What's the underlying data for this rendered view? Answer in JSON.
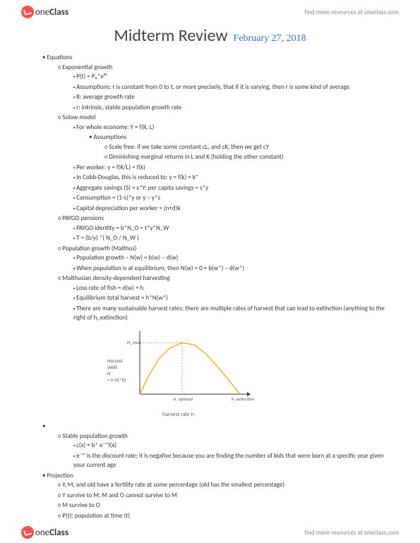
{
  "header": {
    "brand_one": "one",
    "brand_class": "Class",
    "link": "find more resources at oneclass.com"
  },
  "title": "Midterm Review",
  "date": "February 27, 2018",
  "sections": {
    "equations": "Equations",
    "exp_growth": "Exponential growth",
    "exp_items": [
      "P(t) = P₀*eᴿᵗ",
      "Assumptions: r is constant from 0 to t, or more precisely, that if it is varying, then r is some kind of average",
      "R: average growth rate",
      "r: intrinsic, stable population growth rate"
    ],
    "solow": "Solow model",
    "solow_items": [
      "For whole economy: Y = f(K, L)"
    ],
    "solow_assumptions_label": "Assumptions",
    "solow_assumptions": [
      "Scale free: if we take some constant cL, and cK, then we get cY",
      "Diminishing marginal returns in L and K (holding the other constant)"
    ],
    "solow_items2": [
      "Per worker: y = f(K/L) = f(k)",
      "In Cobb-Douglas, this is reduced to: y = f(k) = kᵅ",
      "Aggregate savings (S) = s*Y; per capita savings = s*y",
      "Consumption = (1-s)*y or y − y*s",
      "Capital depreciation per worker = (n+d)k"
    ],
    "paygo": "PAYGO pensions",
    "paygo_items": [
      "PAYGO identity = b*N_O = t*y*N_W",
      "T = (b/y) *( N_O / N_W )"
    ],
    "pop_growth": "Population growth (Malthus)",
    "pop_items": [
      "Population growth – N(w) = b(w) − d(w)",
      "When population is at equilibrium, then N(w) = 0 = b(w*) − d(w*)"
    ],
    "malthus": "Malthusian density-dependent harvesting",
    "malthus_items": [
      "Loss rate of fish = d(w) + h",
      "Equilibrium total harvest = h*N(w*)",
      "There are many sustainable harvest rates; there are multiple rates of harvest that can lead to extinction (anything to the right of h_extinction)"
    ],
    "stable": "Stable population growth",
    "stable_items": [
      "c(x) = b* e⁻ʳˣl(x)",
      "e⁻ʳˣ is the discount rate; it is negative because you are finding the number of kids that were born at a specific year given your current age"
    ],
    "projection": "Projection",
    "projection_items": [
      "Y, M, and old have a fertility rate at some percentage (old has the smallest percentage)",
      "Y survive to M, M and O cannot survive to M",
      "M survive to O",
      "P(t): population at time (t)"
    ]
  },
  "chart": {
    "type": "line",
    "width": 185,
    "height": 110,
    "axis_color": "#333333",
    "curve_color": "#e8b92e",
    "dashed_color": "#888888",
    "background_color": "#ffffff",
    "ylabel_lines": [
      "Harvest",
      "yield:",
      "H",
      "= h N(*h)"
    ],
    "ylabel_fontsize": 7,
    "hmax_label": "H_max",
    "x_ticks": [
      "h_optimal",
      "h_extinction"
    ],
    "xlabel": "harvest rate h",
    "curve_points": [
      [
        18,
        95
      ],
      [
        30,
        70
      ],
      [
        45,
        45
      ],
      [
        60,
        30
      ],
      [
        78,
        22
      ],
      [
        95,
        25
      ],
      [
        112,
        38
      ],
      [
        130,
        58
      ],
      [
        148,
        80
      ],
      [
        160,
        95
      ]
    ],
    "peak_x": 78,
    "peak_y": 22,
    "hmax_y": 22
  }
}
